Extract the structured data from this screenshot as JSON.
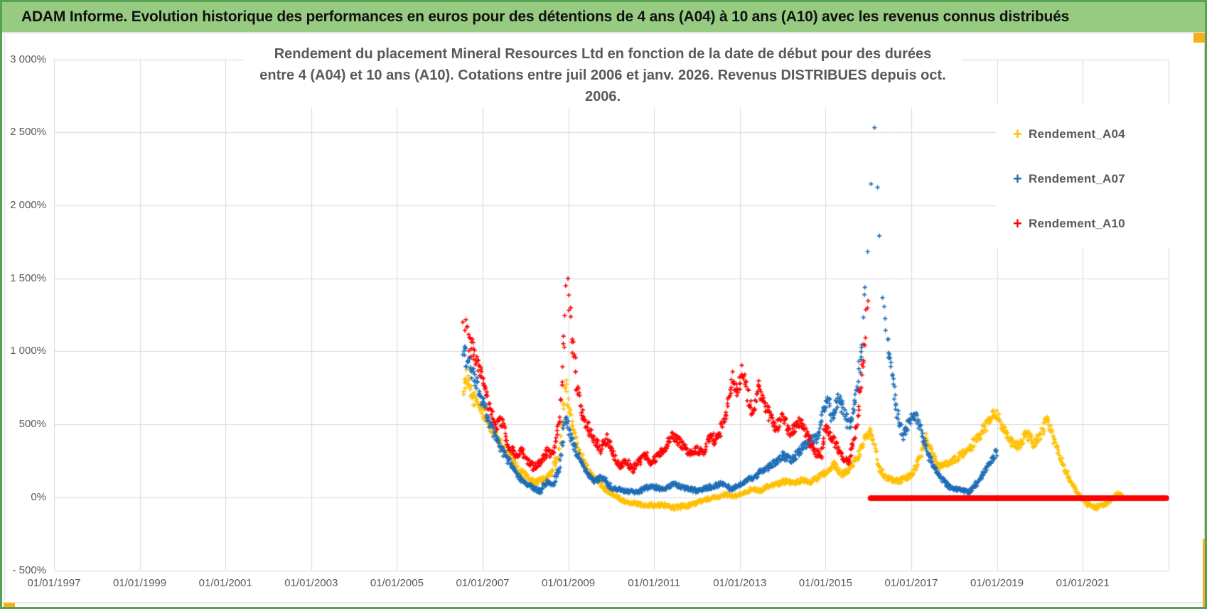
{
  "banner": {
    "title": "ADAM Informe. Evolution historique des performances en euros pour des détentions de 4 ans (A04) à 10 ans (A10) avec les revenus connus distribués"
  },
  "chart": {
    "title_line1": "Rendement du placement Mineral Resources Ltd en fonction de la date de début pour des durées",
    "title_line2": "entre 4 (A04) et 10 ans (A10). Cotations entre juil 2006 et janv. 2026. Revenus DISTRIBUES depuis oct. 2006."
  },
  "chart_data": {
    "type": "scatter",
    "title": "Rendement du placement Mineral Resources Ltd en fonction de la date de début pour des durées entre 4 (A04) et 10 ans (A10). Cotations entre juil 2006 et janv. 2026. Revenus DISTRIBUES depuis oct. 2006.",
    "grid": true,
    "legend_position": "right-top",
    "x_axis": {
      "ticks": [
        "01/01/1997",
        "01/01/1999",
        "01/01/2001",
        "01/01/2003",
        "01/01/2005",
        "01/01/2007",
        "01/01/2009",
        "01/01/2011",
        "01/01/2013",
        "01/01/2015",
        "01/01/2017",
        "01/01/2019",
        "01/01/2021"
      ],
      "tick_years": [
        1997,
        1999,
        2001,
        2003,
        2005,
        2007,
        2009,
        2011,
        2013,
        2015,
        2017,
        2019,
        2021
      ],
      "range_years": [
        1997,
        2023
      ],
      "gridline_step_years": 2
    },
    "y_axis": {
      "ticks": [
        {
          "label": "3 000%",
          "value": 3000
        },
        {
          "label": "2 500%",
          "value": 2500
        },
        {
          "label": "2 000%",
          "value": 2000
        },
        {
          "label": "1 500%",
          "value": 1500
        },
        {
          "label": "1 000%",
          "value": 1000
        },
        {
          "label": "500%",
          "value": 500
        },
        {
          "label": "0%",
          "value": 0
        },
        {
          "label": "- 500%",
          "value": -500
        }
      ],
      "range_pct": [
        -500,
        3000
      ]
    },
    "series": [
      {
        "name": "Rendement_A04",
        "color": "#FFC000",
        "marker": "plus",
        "anchors_year_pct": [
          [
            2006.55,
            750
          ],
          [
            2006.62,
            820
          ],
          [
            2006.75,
            690
          ],
          [
            2006.9,
            640
          ],
          [
            2007.05,
            560
          ],
          [
            2007.2,
            470
          ],
          [
            2007.35,
            400
          ],
          [
            2007.5,
            330
          ],
          [
            2007.65,
            280
          ],
          [
            2007.8,
            200
          ],
          [
            2008.0,
            150
          ],
          [
            2008.2,
            100
          ],
          [
            2008.4,
            120
          ],
          [
            2008.6,
            160
          ],
          [
            2008.8,
            320
          ],
          [
            2008.93,
            780
          ],
          [
            2009.0,
            620
          ],
          [
            2009.1,
            480
          ],
          [
            2009.25,
            320
          ],
          [
            2009.4,
            220
          ],
          [
            2009.55,
            150
          ],
          [
            2009.7,
            100
          ],
          [
            2009.9,
            50
          ],
          [
            2010.1,
            10
          ],
          [
            2010.3,
            -25
          ],
          [
            2010.6,
            -45
          ],
          [
            2010.9,
            -55
          ],
          [
            2011.2,
            -50
          ],
          [
            2011.45,
            -70
          ],
          [
            2011.7,
            -60
          ],
          [
            2011.95,
            -45
          ],
          [
            2012.2,
            -15
          ],
          [
            2012.45,
            0
          ],
          [
            2012.65,
            20
          ],
          [
            2012.85,
            5
          ],
          [
            2013.05,
            30
          ],
          [
            2013.25,
            55
          ],
          [
            2013.45,
            45
          ],
          [
            2013.65,
            70
          ],
          [
            2013.85,
            90
          ],
          [
            2014.05,
            110
          ],
          [
            2014.25,
            90
          ],
          [
            2014.45,
            120
          ],
          [
            2014.65,
            105
          ],
          [
            2014.85,
            140
          ],
          [
            2015.05,
            185
          ],
          [
            2015.2,
            225
          ],
          [
            2015.4,
            155
          ],
          [
            2015.6,
            210
          ],
          [
            2015.8,
            310
          ],
          [
            2015.95,
            430
          ],
          [
            2016.05,
            450
          ],
          [
            2016.15,
            340
          ],
          [
            2016.25,
            200
          ],
          [
            2016.4,
            140
          ],
          [
            2016.55,
            120
          ],
          [
            2016.7,
            110
          ],
          [
            2016.85,
            130
          ],
          [
            2017.0,
            150
          ],
          [
            2017.15,
            240
          ],
          [
            2017.35,
            410
          ],
          [
            2017.5,
            300
          ],
          [
            2017.62,
            200
          ],
          [
            2017.8,
            230
          ],
          [
            2018.0,
            260
          ],
          [
            2018.2,
            300
          ],
          [
            2018.4,
            350
          ],
          [
            2018.6,
            430
          ],
          [
            2018.8,
            510
          ],
          [
            2018.93,
            580
          ],
          [
            2019.05,
            540
          ],
          [
            2019.18,
            450
          ],
          [
            2019.3,
            380
          ],
          [
            2019.5,
            355
          ],
          [
            2019.7,
            430
          ],
          [
            2019.85,
            370
          ],
          [
            2020.0,
            405
          ],
          [
            2020.17,
            560
          ],
          [
            2020.3,
            420
          ],
          [
            2020.45,
            295
          ],
          [
            2020.6,
            180
          ],
          [
            2020.75,
            90
          ],
          [
            2020.9,
            20
          ],
          [
            2021.1,
            -45
          ],
          [
            2021.3,
            -70
          ],
          [
            2021.5,
            -55
          ],
          [
            2021.65,
            -20
          ],
          [
            2021.8,
            25
          ],
          [
            2021.95,
            5
          ]
        ]
      },
      {
        "name": "Rendement_A07",
        "color": "#1C6DB6",
        "marker": "plus",
        "anchors_year_pct": [
          [
            2006.55,
            1000
          ],
          [
            2006.65,
            940
          ],
          [
            2006.8,
            820
          ],
          [
            2007.0,
            650
          ],
          [
            2007.2,
            480
          ],
          [
            2007.4,
            350
          ],
          [
            2007.6,
            250
          ],
          [
            2007.8,
            150
          ],
          [
            2008.0,
            100
          ],
          [
            2008.2,
            60
          ],
          [
            2008.35,
            40
          ],
          [
            2008.5,
            110
          ],
          [
            2008.65,
            90
          ],
          [
            2008.8,
            200
          ],
          [
            2008.93,
            550
          ],
          [
            2009.05,
            420
          ],
          [
            2009.2,
            300
          ],
          [
            2009.4,
            180
          ],
          [
            2009.6,
            110
          ],
          [
            2009.8,
            140
          ],
          [
            2010.0,
            65
          ],
          [
            2010.3,
            45
          ],
          [
            2010.6,
            35
          ],
          [
            2010.9,
            75
          ],
          [
            2011.2,
            60
          ],
          [
            2011.5,
            90
          ],
          [
            2011.8,
            55
          ],
          [
            2012.05,
            45
          ],
          [
            2012.3,
            70
          ],
          [
            2012.6,
            95
          ],
          [
            2012.8,
            55
          ],
          [
            2013.0,
            85
          ],
          [
            2013.2,
            120
          ],
          [
            2013.4,
            155
          ],
          [
            2013.6,
            195
          ],
          [
            2013.8,
            235
          ],
          [
            2014.0,
            285
          ],
          [
            2014.2,
            255
          ],
          [
            2014.4,
            315
          ],
          [
            2014.6,
            380
          ],
          [
            2014.8,
            405
          ],
          [
            2014.95,
            610
          ],
          [
            2015.05,
            680
          ],
          [
            2015.15,
            545
          ],
          [
            2015.3,
            700
          ],
          [
            2015.45,
            565
          ],
          [
            2015.55,
            485
          ],
          [
            2015.7,
            650
          ],
          [
            2015.85,
            1020
          ],
          [
            2015.95,
            1520
          ],
          [
            2016.05,
            2120
          ],
          [
            2016.12,
            2700
          ],
          [
            2016.18,
            2320
          ],
          [
            2016.25,
            1900
          ],
          [
            2016.35,
            1420
          ],
          [
            2016.45,
            1080
          ],
          [
            2016.55,
            800
          ],
          [
            2016.65,
            600
          ],
          [
            2016.8,
            420
          ],
          [
            2016.95,
            520
          ],
          [
            2017.1,
            575
          ],
          [
            2017.25,
            430
          ],
          [
            2017.4,
            285
          ],
          [
            2017.55,
            200
          ],
          [
            2017.7,
            130
          ],
          [
            2017.85,
            80
          ],
          [
            2018.0,
            55
          ],
          [
            2018.2,
            45
          ],
          [
            2018.35,
            35
          ],
          [
            2018.5,
            85
          ],
          [
            2018.65,
            145
          ],
          [
            2018.8,
            225
          ],
          [
            2019.0,
            310
          ]
        ]
      },
      {
        "name": "Rendement_A10",
        "color": "#FE0000",
        "marker": "plus",
        "anchors_year_pct": [
          [
            2006.55,
            1150
          ],
          [
            2006.62,
            1175
          ],
          [
            2006.7,
            1050
          ],
          [
            2006.85,
            950
          ],
          [
            2007.0,
            800
          ],
          [
            2007.15,
            620
          ],
          [
            2007.3,
            500
          ],
          [
            2007.45,
            520
          ],
          [
            2007.6,
            360
          ],
          [
            2007.75,
            290
          ],
          [
            2007.9,
            320
          ],
          [
            2008.05,
            250
          ],
          [
            2008.2,
            205
          ],
          [
            2008.35,
            235
          ],
          [
            2008.5,
            320
          ],
          [
            2008.65,
            285
          ],
          [
            2008.8,
            520
          ],
          [
            2008.9,
            1120
          ],
          [
            2008.97,
            1520
          ],
          [
            2009.05,
            1250
          ],
          [
            2009.12,
            1000
          ],
          [
            2009.2,
            760
          ],
          [
            2009.3,
            610
          ],
          [
            2009.45,
            480
          ],
          [
            2009.6,
            400
          ],
          [
            2009.75,
            330
          ],
          [
            2009.9,
            400
          ],
          [
            2010.05,
            300
          ],
          [
            2010.2,
            205
          ],
          [
            2010.35,
            255
          ],
          [
            2010.5,
            185
          ],
          [
            2010.65,
            245
          ],
          [
            2010.8,
            290
          ],
          [
            2010.95,
            235
          ],
          [
            2011.1,
            285
          ],
          [
            2011.25,
            335
          ],
          [
            2011.4,
            420
          ],
          [
            2011.55,
            390
          ],
          [
            2011.7,
            350
          ],
          [
            2011.85,
            305
          ],
          [
            2012.0,
            325
          ],
          [
            2012.15,
            300
          ],
          [
            2012.3,
            425
          ],
          [
            2012.45,
            385
          ],
          [
            2012.6,
            505
          ],
          [
            2012.75,
            655
          ],
          [
            2012.85,
            825
          ],
          [
            2012.95,
            705
          ],
          [
            2013.05,
            870
          ],
          [
            2013.15,
            750
          ],
          [
            2013.3,
            565
          ],
          [
            2013.45,
            755
          ],
          [
            2013.55,
            650
          ],
          [
            2013.7,
            555
          ],
          [
            2013.85,
            485
          ],
          [
            2014.0,
            560
          ],
          [
            2014.15,
            435
          ],
          [
            2014.3,
            485
          ],
          [
            2014.45,
            525
          ],
          [
            2014.6,
            405
          ],
          [
            2014.75,
            305
          ],
          [
            2014.9,
            285
          ],
          [
            2015.0,
            480
          ],
          [
            2015.1,
            435
          ],
          [
            2015.25,
            355
          ],
          [
            2015.4,
            275
          ],
          [
            2015.55,
            235
          ],
          [
            2015.7,
            455
          ],
          [
            2015.8,
            705
          ],
          [
            2015.9,
            1005
          ],
          [
            2015.98,
            1295
          ],
          [
            2016.02,
            1250
          ]
        ],
        "zero_segment_years": [
          2016.05,
          2022.95
        ]
      }
    ]
  }
}
